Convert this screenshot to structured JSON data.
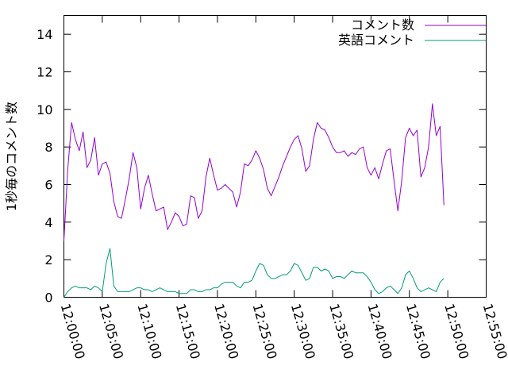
{
  "chart_data": {
    "type": "line",
    "title": "",
    "xlabel": "",
    "ylabel": "1秒毎のコメント数",
    "xlim": [
      "12:00:00",
      "12:55:00"
    ],
    "ylim": [
      0,
      15
    ],
    "yticks": [
      0,
      2,
      4,
      6,
      8,
      10,
      12,
      14
    ],
    "xticks": [
      "12:00:00",
      "12:05:00",
      "12:10:00",
      "12:15:00",
      "12:20:00",
      "12:25:00",
      "12:30:00",
      "12:35:00",
      "12:40:00",
      "12:45:00",
      "12:50:00",
      "12:55:00"
    ],
    "grid": false,
    "legend_position": "top-right",
    "x_interval_seconds": 30,
    "x_start": "12:00:00",
    "series": [
      {
        "name": "コメント数",
        "color": "#9400d3",
        "values": [
          3.0,
          6.8,
          9.3,
          8.4,
          7.8,
          8.8,
          6.9,
          7.3,
          8.5,
          6.5,
          7.1,
          7.2,
          6.6,
          5.1,
          4.3,
          4.2,
          5.2,
          6.3,
          7.7,
          6.9,
          4.7,
          5.8,
          6.5,
          5.5,
          4.6,
          4.7,
          4.8,
          3.6,
          4.0,
          4.5,
          4.3,
          3.8,
          3.9,
          5.4,
          5.3,
          4.2,
          4.6,
          6.4,
          7.4,
          6.5,
          5.7,
          5.8,
          6.0,
          5.8,
          5.6,
          4.8,
          5.6,
          7.1,
          7.0,
          7.3,
          7.8,
          7.4,
          6.8,
          5.8,
          5.4,
          5.9,
          6.4,
          7.0,
          7.5,
          8.0,
          8.4,
          8.6,
          7.9,
          6.7,
          7.0,
          8.4,
          9.3,
          9.0,
          8.9,
          8.5,
          8.0,
          7.7,
          7.7,
          7.8,
          7.5,
          7.7,
          7.6,
          7.9,
          8.0,
          6.9,
          6.5,
          6.9,
          6.3,
          7.1,
          7.8,
          7.9,
          6.2,
          4.6,
          6.2,
          8.5,
          9.0,
          8.6,
          8.9,
          6.4,
          6.9,
          8.0,
          10.3,
          8.6,
          9.1,
          4.9
        ]
      },
      {
        "name": "英語コメント",
        "color": "#009e73",
        "values": [
          0.0,
          0.3,
          0.5,
          0.6,
          0.5,
          0.5,
          0.5,
          0.4,
          0.6,
          0.5,
          0.3,
          1.8,
          2.6,
          0.6,
          0.3,
          0.3,
          0.3,
          0.3,
          0.4,
          0.5,
          0.5,
          0.4,
          0.4,
          0.3,
          0.4,
          0.5,
          0.4,
          0.3,
          0.3,
          0.3,
          0.2,
          0.2,
          0.2,
          0.4,
          0.4,
          0.3,
          0.3,
          0.4,
          0.4,
          0.5,
          0.5,
          0.7,
          0.8,
          0.8,
          0.8,
          0.6,
          0.5,
          0.8,
          0.8,
          0.9,
          1.4,
          1.8,
          1.7,
          1.2,
          1.0,
          1.0,
          1.1,
          1.2,
          1.2,
          1.4,
          1.8,
          1.7,
          1.3,
          0.9,
          1.0,
          1.6,
          1.6,
          1.4,
          1.5,
          1.4,
          1.0,
          1.1,
          1.1,
          1.0,
          1.2,
          1.4,
          1.3,
          1.3,
          1.3,
          1.1,
          0.8,
          0.4,
          0.2,
          0.3,
          0.5,
          0.6,
          0.4,
          0.2,
          0.5,
          1.2,
          1.4,
          1.0,
          0.5,
          0.3,
          0.4,
          0.5,
          0.4,
          0.3,
          0.8,
          1.0
        ]
      }
    ]
  }
}
